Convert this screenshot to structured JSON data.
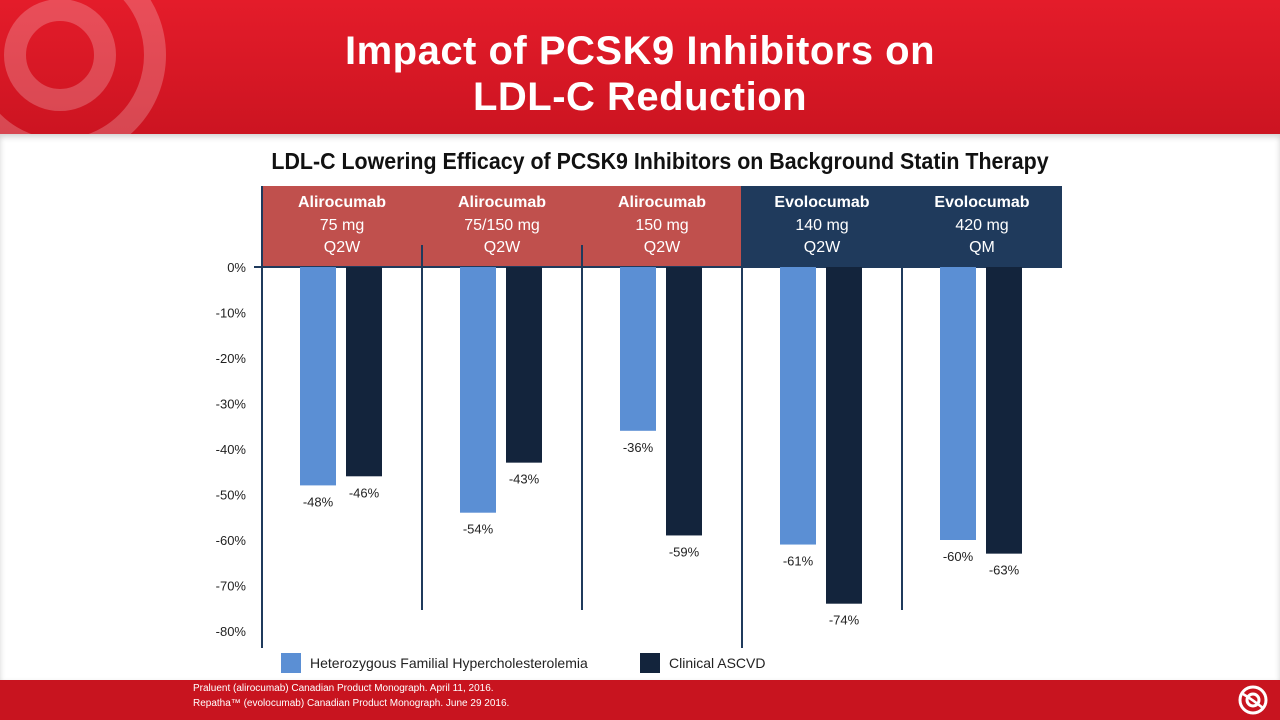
{
  "slide": {
    "title_line1": "Impact of PCSK9 Inhibitors on",
    "title_line2": "LDL-C Reduction"
  },
  "colors": {
    "header_red": "#e41c2a",
    "alirocumab_header": "#c0504d",
    "evolocumab_header": "#1f3a5c",
    "hefh_bar": "#5b8fd4",
    "ascvd_bar": "#13243c"
  },
  "chart_data": {
    "type": "bar",
    "title": "LDL-C Lowering Efficacy of PCSK9 Inhibitors on Background Statin Therapy",
    "groups": [
      {
        "drug": "Alirocumab",
        "dose": "75 mg",
        "freq": "Q2W"
      },
      {
        "drug": "Alirocumab",
        "dose": "75/150 mg",
        "freq": "Q2W"
      },
      {
        "drug": "Alirocumab",
        "dose": "150 mg",
        "freq": "Q2W"
      },
      {
        "drug": "Evolocumab",
        "dose": "140 mg",
        "freq": "Q2W"
      },
      {
        "drug": "Evolocumab",
        "dose": "420 mg",
        "freq": "QM"
      }
    ],
    "series": [
      {
        "name": "Heterozygous Familial Hypercholesterolemia",
        "values": [
          -48,
          -54,
          -36,
          -61,
          -60
        ],
        "labels": [
          "-48%",
          "-54%",
          "-36%",
          "-61%",
          "-60%"
        ]
      },
      {
        "name": "Clinical ASCVD",
        "values": [
          -46,
          -43,
          -59,
          -74,
          -63
        ],
        "labels": [
          "-46%",
          "-43%",
          "-59%",
          "-74%",
          "-63%"
        ]
      }
    ],
    "y_ticks": [
      "0%",
      "-10%",
      "-20%",
      "-30%",
      "-40%",
      "-50%",
      "-60%",
      "-70%",
      "-80%"
    ],
    "ylim": [
      -80,
      0
    ],
    "legend_position": "bottom"
  },
  "references": {
    "ref1": "Praluent (alirocumab) Canadian Product Monograph. April 11, 2016.",
    "ref2": "Repatha™ (evolocumab) Canadian Product Monograph. June 29 2016."
  }
}
